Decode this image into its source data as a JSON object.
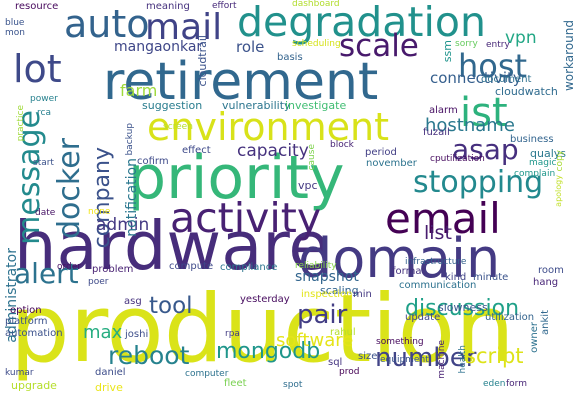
{
  "words": [
    {
      "text": "production",
      "color": "#dae319"
    },
    {
      "text": "hardware",
      "color": "#472d7b"
    },
    {
      "text": "priority",
      "color": "#35b779"
    },
    {
      "text": "retirement",
      "color": "#31688e"
    },
    {
      "text": "domain",
      "color": "#443a83"
    },
    {
      "text": "degradation",
      "color": "#21918c"
    },
    {
      "text": "activity",
      "color": "#482173"
    },
    {
      "text": "environment",
      "color": "#d8e219"
    },
    {
      "text": "email",
      "color": "#440154"
    },
    {
      "text": "auto",
      "color": "#33638d"
    },
    {
      "text": "ist",
      "color": "#2db27d"
    },
    {
      "text": "mail",
      "color": "#404387"
    },
    {
      "text": "docker",
      "color": "#2e6e8e"
    },
    {
      "text": "lot",
      "color": "#3e4989"
    },
    {
      "text": "stopping",
      "color": "#23898e"
    },
    {
      "text": "host",
      "color": "#31688e"
    },
    {
      "text": "scale",
      "color": "#481a6c"
    },
    {
      "text": "message",
      "color": "#238a8d"
    },
    {
      "text": "asap",
      "color": "#462f7e"
    },
    {
      "text": "alert",
      "color": "#2c728e"
    },
    {
      "text": "reboot",
      "color": "#26828e"
    },
    {
      "text": "number",
      "color": "#414487"
    },
    {
      "text": "pair",
      "color": "#433e85"
    },
    {
      "text": "tool",
      "color": "#38598c"
    },
    {
      "text": "discussion",
      "color": "#1fa088"
    },
    {
      "text": "company",
      "color": "#3b528b"
    },
    {
      "text": "mongodb",
      "color": "#1f968b"
    },
    {
      "text": "script",
      "color": "#dde318"
    },
    {
      "text": "hostname",
      "color": "#2a788e"
    },
    {
      "text": "capacity",
      "color": "#46327e"
    },
    {
      "text": "admin",
      "color": "#443983"
    },
    {
      "text": "software",
      "color": "#e5e419"
    },
    {
      "text": "max",
      "color": "#27ad81"
    },
    {
      "text": "list",
      "color": "#481d6f"
    },
    {
      "text": "connectivity",
      "color": "#355f8d"
    },
    {
      "text": "mangaonkar",
      "color": "#3f4788"
    },
    {
      "text": "role",
      "color": "#3b528b"
    },
    {
      "text": "vpn",
      "color": "#22a785"
    },
    {
      "text": "farm",
      "color": "#9fda3a"
    },
    {
      "text": "notification",
      "color": "#2a778e"
    },
    {
      "text": "snapshot",
      "color": "#32658e"
    },
    {
      "text": "administrator",
      "color": "#2c718e"
    },
    {
      "text": "suggestion",
      "color": "#287c8e"
    },
    {
      "text": "vulnerability",
      "color": "#2b758e"
    },
    {
      "text": "investigate",
      "color": "#40bd72"
    },
    {
      "text": "cloudwatch",
      "color": "#2f6b8e"
    },
    {
      "text": "resource",
      "color": "#46085c"
    },
    {
      "text": "meaning",
      "color": "#46327e"
    },
    {
      "text": "effort",
      "color": "#472a7a"
    },
    {
      "text": "dashboard",
      "color": "#b2dd2d"
    },
    {
      "text": "cloudtrail",
      "color": "#3b528b"
    },
    {
      "text": "ssm",
      "color": "#1f948c"
    },
    {
      "text": "blue",
      "color": "#3a548c"
    },
    {
      "text": "mon",
      "color": "#3a548c"
    },
    {
      "text": "scheduling",
      "color": "#d5e21a"
    },
    {
      "text": "sorry",
      "color": "#65cb5e"
    },
    {
      "text": "document",
      "color": "#2d708e"
    },
    {
      "text": "entry",
      "color": "#482878"
    },
    {
      "text": "basis",
      "color": "#33638d"
    },
    {
      "text": "alarm",
      "color": "#471063"
    },
    {
      "text": "fuzail",
      "color": "#46307e"
    },
    {
      "text": "business",
      "color": "#32648e"
    },
    {
      "text": "workaround",
      "color": "#31688e"
    },
    {
      "text": "qualys",
      "color": "#2a788e"
    },
    {
      "text": "cputilization",
      "color": "#470d60"
    },
    {
      "text": "magic",
      "color": "#1f978b"
    },
    {
      "text": "complain",
      "color": "#1f978b"
    },
    {
      "text": "apology",
      "color": "#c0df25"
    },
    {
      "text": "practice",
      "color": "#a0da39"
    },
    {
      "text": "power",
      "color": "#26818e"
    },
    {
      "text": "rca",
      "color": "#277f8e"
    },
    {
      "text": "backup",
      "color": "#3b528b"
    },
    {
      "text": "screen",
      "color": "#b8de29"
    },
    {
      "text": "start",
      "color": "#3b528b"
    },
    {
      "text": "date",
      "color": "#471365"
    },
    {
      "text": "none",
      "color": "#f1e51d"
    },
    {
      "text": "vpc",
      "color": "#443983"
    },
    {
      "text": "cofirm",
      "color": "#3e4a89"
    },
    {
      "text": "effect",
      "color": "#3e4989"
    },
    {
      "text": "block",
      "color": "#482475"
    },
    {
      "text": "cause",
      "color": "#7fd34e"
    },
    {
      "text": "period",
      "color": "#423f85"
    },
    {
      "text": "november",
      "color": "#2c738e"
    },
    {
      "text": "format",
      "color": "#46337f"
    },
    {
      "text": "kind",
      "color": "#414487"
    },
    {
      "text": "minute",
      "color": "#3a538b"
    },
    {
      "text": "room",
      "color": "#3e4c8a"
    },
    {
      "text": "hang",
      "color": "#482677"
    },
    {
      "text": "copy",
      "color": "#a8db34"
    },
    {
      "text": "infrastructure",
      "color": "#34618d"
    },
    {
      "text": "communication",
      "color": "#2c718e"
    },
    {
      "text": "scaling",
      "color": "#32648e"
    },
    {
      "text": "compute",
      "color": "#3e4989"
    },
    {
      "text": "compliance",
      "color": "#2b758e"
    },
    {
      "text": "reliability",
      "color": "#86d549"
    },
    {
      "text": "problem",
      "color": "#482173"
    },
    {
      "text": "order",
      "color": "#471164"
    },
    {
      "text": "inspection",
      "color": "#e2e418"
    },
    {
      "text": "poer",
      "color": "#3e4a89"
    },
    {
      "text": "asg",
      "color": "#46327e"
    },
    {
      "text": "yesterday",
      "color": "#460b5e"
    },
    {
      "text": "min",
      "color": "#443983"
    },
    {
      "text": "slowness",
      "color": "#39568c"
    },
    {
      "text": "update",
      "color": "#404688"
    },
    {
      "text": "utilization",
      "color": "#33638d"
    },
    {
      "text": "ankit",
      "color": "#31688e"
    },
    {
      "text": "owner",
      "color": "#2c718e"
    },
    {
      "text": "option",
      "color": "#440154"
    },
    {
      "text": "platform",
      "color": "#3b528b"
    },
    {
      "text": "automation",
      "color": "#3b518b"
    },
    {
      "text": "upgrade",
      "color": "#b5de2b"
    },
    {
      "text": "joshi",
      "color": "#3d4e8a"
    },
    {
      "text": "rpa",
      "color": "#433d84"
    },
    {
      "text": "drive",
      "color": "#eae51a"
    },
    {
      "text": "daniel",
      "color": "#3d4d8a"
    },
    {
      "text": "kumar",
      "color": "#3e4c8a"
    },
    {
      "text": "computer",
      "color": "#2c728e"
    },
    {
      "text": "fleet",
      "color": "#7ad151"
    },
    {
      "text": "rahul",
      "color": "#b5de2b"
    },
    {
      "text": "size",
      "color": "#3b528b"
    },
    {
      "text": "sql",
      "color": "#453581"
    },
    {
      "text": "prod",
      "color": "#440154"
    },
    {
      "text": "spot",
      "color": "#2e6d8e"
    },
    {
      "text": "something",
      "color": "#460a5d"
    },
    {
      "text": "equipment",
      "color": "#3a548c"
    },
    {
      "text": "machine",
      "color": "#482273"
    },
    {
      "text": "health",
      "color": "#2c718e"
    },
    {
      "text": "eden",
      "color": "#26828e"
    },
    {
      "text": "form",
      "color": "#482677"
    },
    {
      "text": "want",
      "color": "#471365"
    }
  ]
}
